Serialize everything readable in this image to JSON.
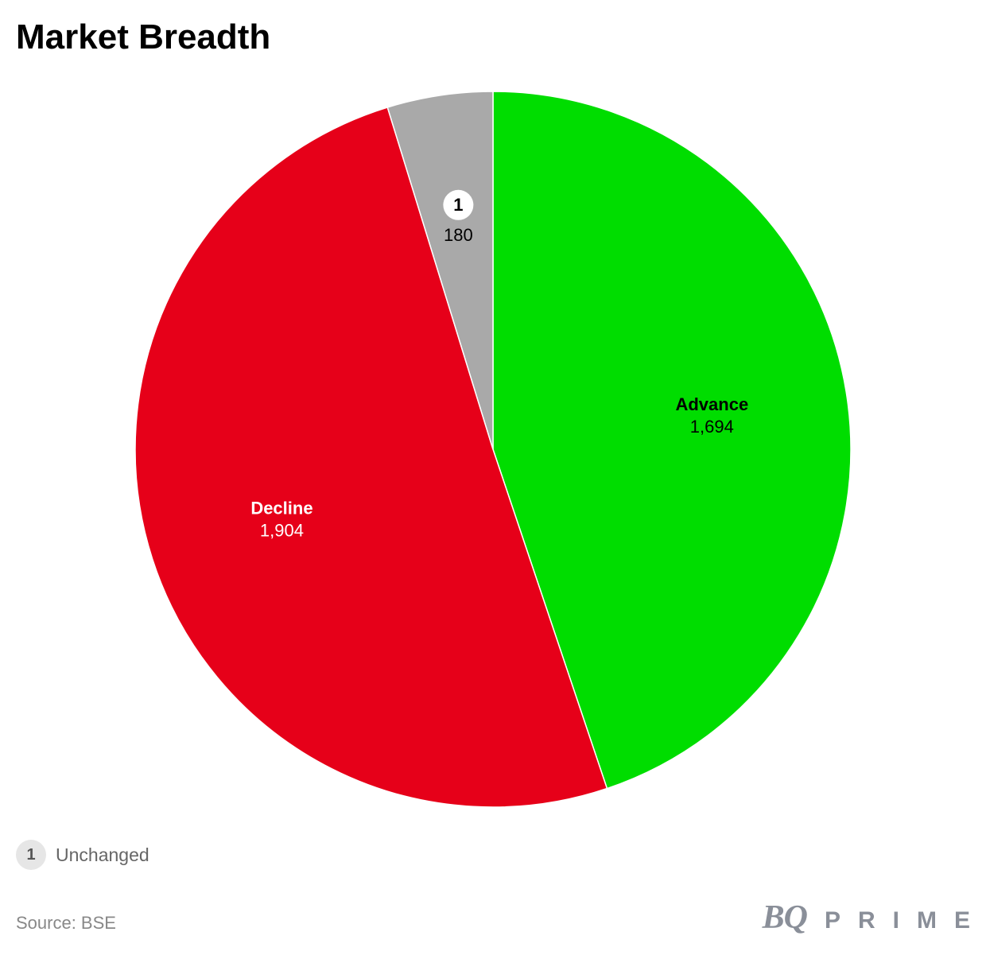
{
  "title": "Market Breadth",
  "chart_data": {
    "type": "pie",
    "categories": [
      "Advance",
      "Decline",
      "Unchanged"
    ],
    "values": [
      1694,
      1904,
      180
    ],
    "value_labels": [
      "1,694",
      "1,904",
      "180"
    ],
    "colors": [
      "#00dd00",
      "#e60019",
      "#a9a9a9"
    ],
    "label_colors": [
      "#000000",
      "#ffffff",
      "#000000"
    ],
    "inline_labels": [
      "Advance",
      "Decline",
      ""
    ],
    "badges": [
      "",
      "",
      "1"
    ],
    "start_angle_deg": 0,
    "direction": "clockwise"
  },
  "legend": {
    "badge": "1",
    "label": "Unchanged"
  },
  "source": "Source: BSE",
  "logo": {
    "bq": "BQ",
    "prime": "PRIME",
    "color": "#8a8f99"
  }
}
